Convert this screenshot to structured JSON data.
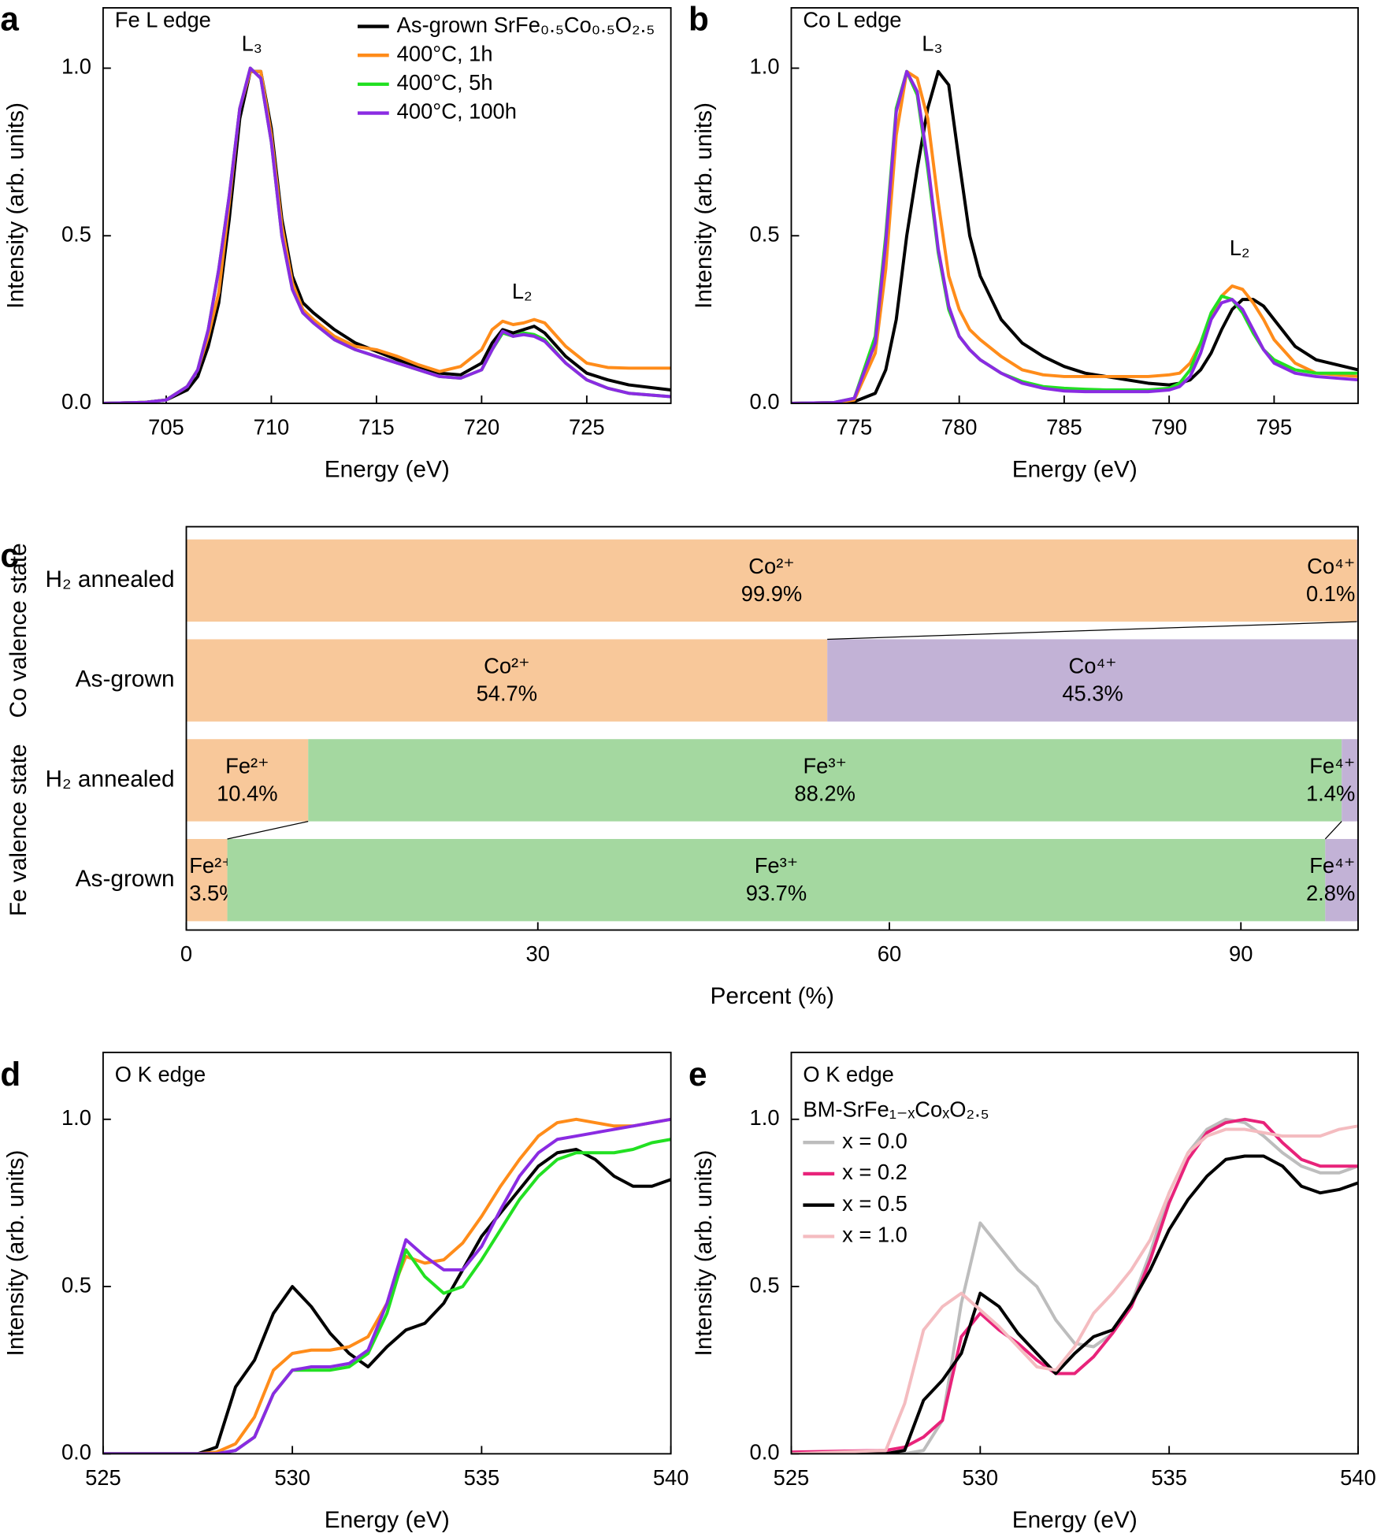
{
  "chart_data": [
    {
      "type": "line",
      "panel_label": "a",
      "annotations": [
        "Fe L edge",
        "L₃",
        "L₂"
      ],
      "x_label": "Energy (eV)",
      "y_label": "Intensity (arb. units)",
      "xlim": [
        702,
        729
      ],
      "xticks": [
        705,
        710,
        715,
        720,
        725
      ],
      "ylim": [
        0,
        1.18
      ],
      "yticks": [
        {
          "value": 0,
          "label": "0.0"
        },
        {
          "value": 0.5,
          "label": "0.5"
        },
        {
          "value": 1,
          "label": "1.0"
        }
      ],
      "x": [
        702,
        704,
        705,
        706,
        706.5,
        707,
        707.5,
        708,
        708.5,
        709,
        709.5,
        710,
        710.5,
        711,
        711.5,
        712,
        713,
        714,
        715,
        716,
        717,
        718,
        719,
        720,
        720.5,
        721,
        721.5,
        722,
        722.5,
        723,
        724,
        725,
        726,
        727,
        729
      ],
      "series": [
        {
          "name": "As-grown SrFe₀.₅Co₀.₅O₂.₅",
          "color": "#000000",
          "values": [
            0,
            0.003,
            0.01,
            0.04,
            0.08,
            0.17,
            0.3,
            0.55,
            0.85,
            0.99,
            0.99,
            0.82,
            0.55,
            0.38,
            0.3,
            0.27,
            0.22,
            0.18,
            0.155,
            0.13,
            0.11,
            0.09,
            0.085,
            0.12,
            0.18,
            0.22,
            0.21,
            0.22,
            0.23,
            0.21,
            0.14,
            0.09,
            0.07,
            0.055,
            0.04
          ]
        },
        {
          "name": "400°C, 1h",
          "color": "#ff8c1a",
          "values": [
            0,
            0.003,
            0.01,
            0.05,
            0.1,
            0.2,
            0.33,
            0.6,
            0.88,
            0.99,
            0.99,
            0.8,
            0.53,
            0.36,
            0.28,
            0.25,
            0.2,
            0.17,
            0.16,
            0.14,
            0.115,
            0.095,
            0.11,
            0.16,
            0.22,
            0.245,
            0.235,
            0.24,
            0.25,
            0.24,
            0.17,
            0.12,
            0.107,
            0.105,
            0.105
          ]
        },
        {
          "name": "400°C, 5h",
          "color": "#22e022",
          "values": [
            0,
            0.003,
            0.01,
            0.05,
            0.1,
            0.22,
            0.4,
            0.62,
            0.88,
            1.0,
            0.97,
            0.78,
            0.5,
            0.34,
            0.27,
            0.24,
            0.19,
            0.16,
            0.14,
            0.12,
            0.1,
            0.08,
            0.075,
            0.1,
            0.16,
            0.21,
            0.2,
            0.21,
            0.205,
            0.19,
            0.12,
            0.07,
            0.045,
            0.03,
            0.02
          ]
        },
        {
          "name": "400°C, 100h",
          "color": "#8a2be2",
          "values": [
            0,
            0.003,
            0.01,
            0.05,
            0.1,
            0.22,
            0.4,
            0.62,
            0.88,
            1.0,
            0.97,
            0.78,
            0.5,
            0.34,
            0.27,
            0.24,
            0.19,
            0.16,
            0.14,
            0.12,
            0.1,
            0.08,
            0.075,
            0.1,
            0.16,
            0.215,
            0.2,
            0.205,
            0.2,
            0.185,
            0.12,
            0.07,
            0.045,
            0.03,
            0.02
          ]
        }
      ]
    },
    {
      "type": "line",
      "panel_label": "b",
      "annotations": [
        "Co L edge",
        "L₃",
        "L₂"
      ],
      "x_label": "Energy (eV)",
      "y_label": "Intensity (arb. units)",
      "xlim": [
        772,
        799
      ],
      "xticks": [
        775,
        780,
        785,
        790,
        795
      ],
      "ylim": [
        0,
        1.18
      ],
      "yticks": [
        {
          "value": 0,
          "label": "0.0"
        },
        {
          "value": 0.5,
          "label": "0.5"
        },
        {
          "value": 1,
          "label": "1.0"
        }
      ],
      "x": [
        772,
        774,
        775,
        776,
        776.5,
        777,
        777.5,
        778,
        778.5,
        779,
        779.5,
        780,
        780.5,
        781,
        782,
        783,
        784,
        785,
        786,
        787,
        788,
        789,
        790,
        790.5,
        791,
        791.5,
        792,
        792.5,
        793,
        793.5,
        794,
        794.5,
        795,
        796,
        797,
        799
      ],
      "series": [
        {
          "color": "#000000",
          "values": [
            0,
            0.002,
            0.005,
            0.03,
            0.1,
            0.25,
            0.5,
            0.7,
            0.88,
            0.99,
            0.95,
            0.72,
            0.5,
            0.38,
            0.25,
            0.18,
            0.14,
            0.11,
            0.09,
            0.08,
            0.07,
            0.06,
            0.055,
            0.06,
            0.07,
            0.1,
            0.15,
            0.22,
            0.28,
            0.31,
            0.31,
            0.29,
            0.25,
            0.17,
            0.13,
            0.1
          ]
        },
        {
          "color": "#ff8c1a",
          "values": [
            0,
            0.002,
            0.01,
            0.15,
            0.4,
            0.8,
            0.99,
            0.97,
            0.85,
            0.6,
            0.38,
            0.28,
            0.22,
            0.19,
            0.14,
            0.1,
            0.085,
            0.08,
            0.08,
            0.08,
            0.08,
            0.08,
            0.085,
            0.09,
            0.12,
            0.18,
            0.26,
            0.32,
            0.35,
            0.34,
            0.3,
            0.25,
            0.19,
            0.12,
            0.09,
            0.08
          ]
        },
        {
          "color": "#22e022",
          "values": [
            0,
            0.002,
            0.015,
            0.2,
            0.5,
            0.88,
            0.99,
            0.92,
            0.7,
            0.45,
            0.28,
            0.2,
            0.16,
            0.13,
            0.09,
            0.065,
            0.05,
            0.045,
            0.042,
            0.04,
            0.04,
            0.04,
            0.045,
            0.06,
            0.1,
            0.18,
            0.27,
            0.32,
            0.31,
            0.27,
            0.21,
            0.16,
            0.13,
            0.1,
            0.09,
            0.09
          ]
        },
        {
          "color": "#8a2be2",
          "values": [
            0,
            0.002,
            0.015,
            0.18,
            0.48,
            0.87,
            0.99,
            0.93,
            0.72,
            0.46,
            0.29,
            0.2,
            0.16,
            0.13,
            0.09,
            0.06,
            0.045,
            0.037,
            0.035,
            0.035,
            0.035,
            0.035,
            0.04,
            0.05,
            0.08,
            0.15,
            0.25,
            0.3,
            0.31,
            0.28,
            0.22,
            0.16,
            0.12,
            0.09,
            0.08,
            0.07
          ]
        }
      ]
    },
    {
      "type": "stacked_barh",
      "panel_label": "c",
      "x_label": "Percent (%)",
      "xlim": [
        0,
        100
      ],
      "xticks": [
        0,
        30,
        60,
        90
      ],
      "group_labels": [
        "Co valence state",
        "Fe valence state"
      ],
      "categories": [
        "H₂ annealed",
        "As-grown",
        "H₂ annealed",
        "As-grown"
      ],
      "series": [
        {
          "name": "Co²⁺",
          "color": "#f8c89a",
          "values": [
            99.9,
            54.7,
            null,
            null
          ],
          "value_labels": [
            "99.9%",
            "54.7%",
            null,
            null
          ]
        },
        {
          "name": "Co⁴⁺",
          "color": "#c2b2d6",
          "values": [
            0.1,
            45.3,
            null,
            null
          ],
          "value_labels": [
            "0.1%",
            "45.3%",
            null,
            null
          ]
        },
        {
          "name": "Fe²⁺",
          "color": "#f8c89a",
          "values": [
            null,
            null,
            10.4,
            3.5
          ],
          "value_labels": [
            null,
            null,
            "10.4%",
            "3.5%"
          ]
        },
        {
          "name": "Fe³⁺",
          "color": "#a4d8a0",
          "values": [
            null,
            null,
            88.2,
            93.7
          ],
          "value_labels": [
            null,
            null,
            "88.2%",
            "93.7%"
          ]
        },
        {
          "name": "Fe⁴⁺",
          "color": "#c2b2d6",
          "values": [
            null,
            null,
            1.4,
            2.8
          ],
          "value_labels": [
            null,
            null,
            "1.4%",
            "2.8%"
          ]
        }
      ]
    },
    {
      "type": "line",
      "panel_label": "d",
      "annotations": [
        "O K edge"
      ],
      "x_label": "Energy (eV)",
      "y_label": "Intensity (arb. units)",
      "xlim": [
        525,
        540
      ],
      "xticks": [
        525,
        530,
        535,
        540
      ],
      "ylim": [
        0,
        1.2
      ],
      "yticks": [
        {
          "value": 0,
          "label": "0.0"
        },
        {
          "value": 0.5,
          "label": "0.5"
        },
        {
          "value": 1,
          "label": "1.0"
        }
      ],
      "x": [
        525,
        527.5,
        528,
        528.5,
        529,
        529.5,
        530,
        530.5,
        531,
        531.5,
        532,
        532.5,
        533,
        533.5,
        534,
        534.5,
        535,
        535.5,
        536,
        536.5,
        537,
        537.5,
        538,
        538.5,
        539,
        539.5,
        540
      ],
      "series": [
        {
          "color": "#000000",
          "values": [
            0,
            0,
            0.02,
            0.2,
            0.28,
            0.42,
            0.5,
            0.44,
            0.36,
            0.3,
            0.26,
            0.32,
            0.37,
            0.39,
            0.45,
            0.55,
            0.65,
            0.72,
            0.79,
            0.86,
            0.9,
            0.91,
            0.88,
            0.83,
            0.8,
            0.8,
            0.82
          ]
        },
        {
          "color": "#ff8c1a",
          "values": [
            0,
            0,
            0.005,
            0.03,
            0.11,
            0.25,
            0.3,
            0.31,
            0.31,
            0.32,
            0.35,
            0.45,
            0.59,
            0.57,
            0.58,
            0.63,
            0.71,
            0.8,
            0.88,
            0.95,
            0.99,
            1.0,
            0.99,
            0.98,
            0.98,
            0.99,
            1.0
          ]
        },
        {
          "color": "#22e022",
          "values": [
            0,
            0,
            0,
            0.01,
            0.05,
            0.18,
            0.25,
            0.25,
            0.25,
            0.26,
            0.3,
            0.42,
            0.61,
            0.53,
            0.48,
            0.5,
            0.58,
            0.67,
            0.76,
            0.83,
            0.88,
            0.9,
            0.9,
            0.9,
            0.91,
            0.93,
            0.94
          ]
        },
        {
          "color": "#8a2be2",
          "values": [
            0,
            0,
            0,
            0.01,
            0.05,
            0.18,
            0.25,
            0.26,
            0.26,
            0.27,
            0.31,
            0.45,
            0.64,
            0.59,
            0.55,
            0.55,
            0.62,
            0.73,
            0.83,
            0.9,
            0.94,
            0.95,
            0.96,
            0.97,
            0.98,
            0.99,
            1.0
          ]
        }
      ]
    },
    {
      "type": "line",
      "panel_label": "e",
      "annotations": [
        "O K edge",
        "BM-SrFe₁₋ₓCoₓO₂.₅"
      ],
      "x_label": "Energy (eV)",
      "y_label": "Intensity (arb. units)",
      "xlim": [
        525,
        540
      ],
      "xticks": [
        525,
        530,
        535,
        540
      ],
      "ylim": [
        0,
        1.2
      ],
      "yticks": [
        {
          "value": 0,
          "label": "0.0"
        },
        {
          "value": 0.5,
          "label": "0.5"
        },
        {
          "value": 1,
          "label": "1.0"
        }
      ],
      "x": [
        525,
        527.5,
        528,
        528.5,
        529,
        529.5,
        530,
        530.5,
        531,
        531.5,
        532,
        532.5,
        533,
        533.5,
        534,
        534.5,
        535,
        535.5,
        536,
        536.5,
        537,
        537.5,
        538,
        538.5,
        539,
        539.5,
        540
      ],
      "series": [
        {
          "name": "x = 0.0",
          "color": "#bdbdbd",
          "values": [
            0,
            0,
            0,
            0.01,
            0.1,
            0.45,
            0.69,
            0.62,
            0.55,
            0.5,
            0.4,
            0.33,
            0.32,
            0.36,
            0.45,
            0.6,
            0.78,
            0.9,
            0.97,
            1.0,
            0.99,
            0.95,
            0.9,
            0.86,
            0.84,
            0.84,
            0.86
          ]
        },
        {
          "name": "x = 0.2",
          "color": "#e8237a",
          "values": [
            0.005,
            0.01,
            0.02,
            0.05,
            0.1,
            0.35,
            0.42,
            0.37,
            0.33,
            0.28,
            0.24,
            0.24,
            0.29,
            0.36,
            0.44,
            0.58,
            0.75,
            0.88,
            0.96,
            0.99,
            1.0,
            0.99,
            0.93,
            0.88,
            0.86,
            0.86,
            0.86
          ]
        },
        {
          "name": "x = 0.5",
          "color": "#000000",
          "values": [
            0,
            0,
            0.01,
            0.16,
            0.22,
            0.3,
            0.48,
            0.44,
            0.36,
            0.3,
            0.24,
            0.3,
            0.35,
            0.37,
            0.45,
            0.55,
            0.67,
            0.76,
            0.83,
            0.88,
            0.89,
            0.89,
            0.86,
            0.8,
            0.78,
            0.79,
            0.81
          ]
        },
        {
          "name": "x = 1.0",
          "color": "#f4bcc0",
          "values": [
            0,
            0.01,
            0.15,
            0.37,
            0.44,
            0.48,
            0.43,
            0.38,
            0.32,
            0.26,
            0.25,
            0.32,
            0.42,
            0.48,
            0.55,
            0.64,
            0.78,
            0.9,
            0.95,
            0.97,
            0.97,
            0.96,
            0.95,
            0.95,
            0.95,
            0.97,
            0.98
          ]
        }
      ]
    }
  ]
}
